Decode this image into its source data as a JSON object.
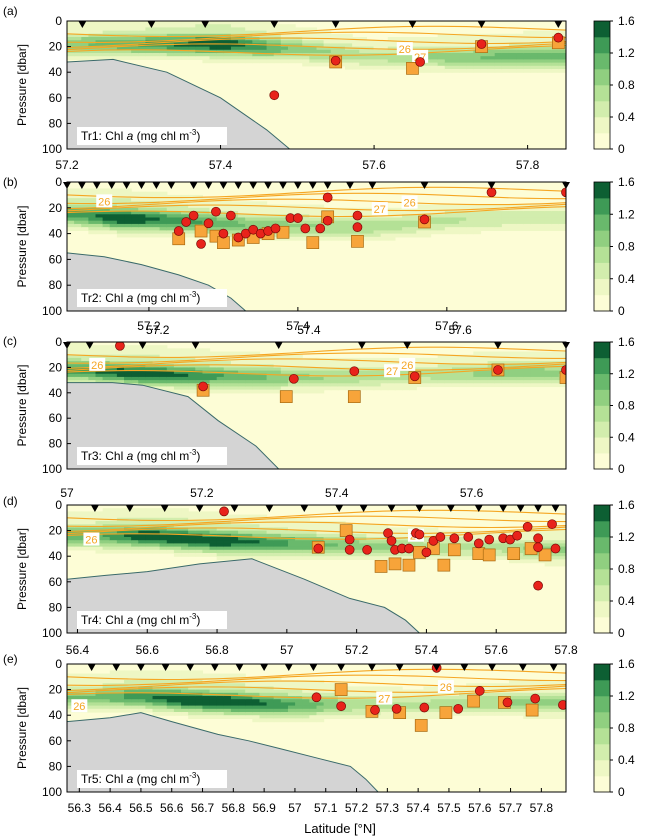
{
  "figure": {
    "xlabel": "Latitude [°N]",
    "cbar_ticks": [
      "1.6",
      "1.2",
      "0.8",
      "0.4",
      "0"
    ],
    "colors": {
      "c0": "#fdfdd6",
      "c1": "#eef7c4",
      "c2": "#d2edad",
      "c3": "#b4e196",
      "c4": "#90cf80",
      "c5": "#69b96c",
      "c6": "#3e9a56",
      "c7": "#0d5f33",
      "bathy": "#d4d4d4",
      "bathy_edge": "#3a6a6a",
      "isopycnal": "#f5a623",
      "circle": "#e8231b",
      "square": "#f7a43a"
    }
  },
  "chart_data": [
    {
      "type": "heatmap",
      "panel": "(a)",
      "transect": "Tr1",
      "label_prefix": "Tr1: Chl ",
      "label_var": "a",
      "label_unit": " (mg chl m",
      "label_sup": "-3",
      "label_end": ")",
      "ylabel": "Pressure [dbar]",
      "ylim": [
        100,
        0
      ],
      "yticks": [
        "0",
        "20",
        "40",
        "60",
        "80",
        "100"
      ],
      "xlim": [
        57.2,
        57.85
      ],
      "xticks": [
        57.2,
        57.4,
        57.6,
        57.8
      ],
      "xtick_labels": [
        "57.2",
        "57.4",
        "57.6",
        "57.8"
      ],
      "colorbar": [
        0,
        1.6
      ],
      "stations": [
        57.22,
        57.31,
        57.38,
        57.47,
        57.55,
        57.65,
        57.74,
        57.84
      ],
      "isopycnal_labels": [
        {
          "text": "26",
          "x": 57.64,
          "y": 22
        },
        {
          "text": "27",
          "x": 57.66,
          "y": 28
        }
      ],
      "circles": [
        [
          57.47,
          58
        ],
        [
          57.55,
          31
        ],
        [
          57.66,
          32
        ],
        [
          57.74,
          18
        ],
        [
          57.84,
          13
        ]
      ],
      "squares": [
        [
          57.55,
          32
        ],
        [
          57.65,
          37
        ],
        [
          57.74,
          20
        ],
        [
          57.84,
          17
        ]
      ],
      "bathymetry": [
        [
          57.2,
          32
        ],
        [
          57.26,
          30
        ],
        [
          57.33,
          40
        ],
        [
          57.4,
          60
        ],
        [
          57.46,
          85
        ],
        [
          57.49,
          100
        ]
      ],
      "chl_max": [
        [
          57.2,
          18,
          0.9
        ],
        [
          57.3,
          18,
          1.2
        ],
        [
          57.4,
          18,
          1.6
        ],
        [
          57.5,
          22,
          0.9
        ],
        [
          57.6,
          28,
          0.6
        ],
        [
          57.7,
          28,
          0.9
        ],
        [
          57.8,
          28,
          1.1
        ]
      ]
    },
    {
      "type": "heatmap",
      "panel": "(b)",
      "transect": "Tr2",
      "label_prefix": "Tr2: Chl ",
      "label_var": "a",
      "label_unit": " (mg chl m",
      "label_sup": "-3",
      "label_end": ")",
      "ylabel": "Pressure [dbar]",
      "ylim": [
        100,
        0
      ],
      "yticks": [
        "0",
        "20",
        "40",
        "60",
        "80",
        "100"
      ],
      "xlim": [
        57.09,
        57.76
      ],
      "xticks": [
        57.2,
        57.4,
        57.6
      ],
      "xtick_labels": [
        "57.2",
        "57.4",
        "57.6"
      ],
      "colorbar": [
        0,
        1.6
      ],
      "stations": [
        57.09,
        57.11,
        57.13,
        57.15,
        57.17,
        57.19,
        57.21,
        57.23,
        57.26,
        57.28,
        57.3,
        57.32,
        57.34,
        57.36,
        57.38,
        57.4,
        57.42,
        57.44,
        57.47,
        57.5,
        57.57,
        57.66,
        57.76
      ],
      "isopycnal_labels": [
        {
          "text": "26",
          "x": 57.14,
          "y": 15
        },
        {
          "text": "26",
          "x": 57.55,
          "y": 16
        },
        {
          "text": "27",
          "x": 57.51,
          "y": 21
        }
      ],
      "circles": [
        [
          57.44,
          12
        ],
        [
          57.66,
          8
        ],
        [
          57.76,
          8
        ],
        [
          57.24,
          38
        ],
        [
          57.25,
          31
        ],
        [
          57.26,
          26
        ],
        [
          57.27,
          48
        ],
        [
          57.28,
          32
        ],
        [
          57.29,
          23
        ],
        [
          57.3,
          40
        ],
        [
          57.31,
          26
        ],
        [
          57.32,
          43
        ],
        [
          57.33,
          40
        ],
        [
          57.34,
          37
        ],
        [
          57.35,
          40
        ],
        [
          57.36,
          38
        ],
        [
          57.37,
          36
        ],
        [
          57.39,
          28
        ],
        [
          57.4,
          28
        ],
        [
          57.41,
          36
        ],
        [
          57.43,
          36
        ],
        [
          57.44,
          30
        ],
        [
          57.48,
          26
        ],
        [
          57.48,
          35
        ],
        [
          57.57,
          29
        ]
      ],
      "squares": [
        [
          57.24,
          44
        ],
        [
          57.27,
          38
        ],
        [
          57.29,
          42
        ],
        [
          57.3,
          47
        ],
        [
          57.32,
          45
        ],
        [
          57.34,
          43
        ],
        [
          57.36,
          40
        ],
        [
          57.38,
          39
        ],
        [
          57.42,
          47
        ],
        [
          57.44,
          27
        ],
        [
          57.48,
          46
        ],
        [
          57.57,
          31
        ]
      ],
      "bathymetry": [
        [
          57.09,
          55
        ],
        [
          57.14,
          58
        ],
        [
          57.19,
          64
        ],
        [
          57.24,
          72
        ],
        [
          57.28,
          80
        ],
        [
          57.31,
          90
        ],
        [
          57.33,
          100
        ]
      ],
      "chl_max": [
        [
          57.1,
          25,
          1.2
        ],
        [
          57.16,
          28,
          1.6
        ],
        [
          57.24,
          30,
          1.3
        ],
        [
          57.32,
          33,
          1.0
        ],
        [
          57.4,
          34,
          0.8
        ],
        [
          57.5,
          35,
          0.7
        ],
        [
          57.6,
          30,
          0.6
        ],
        [
          57.7,
          28,
          0.5
        ]
      ]
    },
    {
      "type": "heatmap",
      "panel": "(c)",
      "transect": "Tr3",
      "label_prefix": "Tr3: Chl ",
      "label_var": "a",
      "label_unit": " (mg chl m",
      "label_sup": "-3",
      "label_end": ")",
      "ylabel": "Pressure [dbar]",
      "ylim": [
        100,
        0
      ],
      "yticks": [
        "0",
        "20",
        "40",
        "60",
        "80",
        "100"
      ],
      "xlim": [
        57.08,
        57.74
      ],
      "xticks": [
        57.2,
        57.4,
        57.6
      ],
      "xtick_labels": [
        "57.2",
        "57.4",
        "57.6"
      ],
      "colorbar": [
        0,
        1.6
      ],
      "stations": [
        57.08,
        57.11,
        57.18,
        57.25,
        57.36,
        57.47,
        57.53,
        57.65,
        57.74
      ],
      "isopycnal_labels": [
        {
          "text": "26",
          "x": 57.12,
          "y": 18
        },
        {
          "text": "26",
          "x": 57.53,
          "y": 18
        },
        {
          "text": "27",
          "x": 57.51,
          "y": 23
        }
      ],
      "circles": [
        [
          57.15,
          3
        ],
        [
          57.26,
          35
        ],
        [
          57.38,
          29
        ],
        [
          57.46,
          23
        ],
        [
          57.54,
          27
        ],
        [
          57.65,
          22
        ],
        [
          57.74,
          22
        ]
      ],
      "squares": [
        [
          57.26,
          38
        ],
        [
          57.37,
          43
        ],
        [
          57.46,
          43
        ],
        [
          57.54,
          28
        ],
        [
          57.65,
          22
        ],
        [
          57.74,
          28
        ]
      ],
      "bathymetry": [
        [
          57.08,
          32
        ],
        [
          57.14,
          32
        ],
        [
          57.18,
          34
        ],
        [
          57.24,
          43
        ],
        [
          57.28,
          62
        ],
        [
          57.33,
          82
        ],
        [
          57.36,
          100
        ]
      ],
      "chl_max": [
        [
          57.1,
          22,
          1.3
        ],
        [
          57.18,
          25,
          1.6
        ],
        [
          57.28,
          27,
          1.2
        ],
        [
          57.4,
          28,
          0.8
        ],
        [
          57.55,
          26,
          0.6
        ],
        [
          57.66,
          24,
          0.9
        ],
        [
          57.74,
          24,
          0.8
        ]
      ]
    },
    {
      "type": "heatmap",
      "panel": "(d)",
      "transect": "Tr4",
      "label_prefix": "Tr4: Chl ",
      "label_var": "a",
      "label_unit": " (mg chl m",
      "label_sup": "-3",
      "label_end": ")",
      "ylabel": "Pressure [dbar]",
      "ylim": [
        100,
        0
      ],
      "yticks": [
        "0",
        "20",
        "40",
        "60",
        "80",
        "100"
      ],
      "top_xlim": [
        57,
        57.74
      ],
      "top_xticks": [
        57,
        57.2,
        57.4,
        57.6
      ],
      "top_xtick_labels": [
        "57",
        "57.2",
        "57.4",
        "57.6"
      ],
      "xlim": [
        56.37,
        57.8
      ],
      "xticks": [
        56.4,
        56.6,
        56.8,
        57,
        57.2,
        57.4,
        57.6,
        57.8
      ],
      "xtick_labels": [
        "56.4",
        "56.6",
        "56.8",
        "57",
        "57.2",
        "57.4",
        "57.6",
        "57.8"
      ],
      "colorbar": [
        0,
        1.6
      ],
      "stations": [
        56.45,
        56.55,
        56.65,
        56.75,
        56.85,
        56.95,
        57.05,
        57.15,
        57.22,
        57.3,
        57.38,
        57.47,
        57.55,
        57.62,
        57.67,
        57.72,
        57.77
      ],
      "isopycnal_labels": [
        {
          "text": "26",
          "x": 56.44,
          "y": 27
        },
        {
          "text": "26",
          "x": 57.37,
          "y": 24
        }
      ],
      "circles": [
        [
          56.82,
          5
        ],
        [
          57.09,
          34
        ],
        [
          57.18,
          27
        ],
        [
          57.18,
          35
        ],
        [
          57.23,
          35
        ],
        [
          57.29,
          22
        ],
        [
          57.3,
          28
        ],
        [
          57.31,
          35
        ],
        [
          57.33,
          34
        ],
        [
          57.35,
          34
        ],
        [
          57.37,
          22
        ],
        [
          57.38,
          23
        ],
        [
          57.4,
          37
        ],
        [
          57.42,
          28
        ],
        [
          57.44,
          25
        ],
        [
          57.48,
          26
        ],
        [
          57.52,
          25
        ],
        [
          57.55,
          30
        ],
        [
          57.58,
          27
        ],
        [
          57.62,
          26
        ],
        [
          57.64,
          27
        ],
        [
          57.66,
          24
        ],
        [
          57.69,
          17
        ],
        [
          57.72,
          26
        ],
        [
          57.72,
          33
        ],
        [
          57.76,
          15
        ],
        [
          57.77,
          34
        ],
        [
          57.72,
          63
        ]
      ],
      "squares": [
        [
          57.09,
          33
        ],
        [
          57.17,
          20
        ],
        [
          57.27,
          48
        ],
        [
          57.31,
          46
        ],
        [
          57.35,
          47
        ],
        [
          57.38,
          37
        ],
        [
          57.42,
          34
        ],
        [
          57.45,
          47
        ],
        [
          57.48,
          35
        ],
        [
          57.55,
          38
        ],
        [
          57.58,
          39
        ],
        [
          57.65,
          38
        ],
        [
          57.7,
          34
        ],
        [
          57.74,
          39
        ]
      ],
      "bathymetry": [
        [
          56.37,
          58
        ],
        [
          56.48,
          55
        ],
        [
          56.6,
          52
        ],
        [
          56.75,
          46
        ],
        [
          56.9,
          42
        ],
        [
          57.05,
          58
        ],
        [
          57.18,
          73
        ],
        [
          57.28,
          80
        ],
        [
          57.34,
          90
        ],
        [
          57.38,
          100
        ]
      ],
      "chl_max": [
        [
          56.45,
          24,
          1.1
        ],
        [
          56.6,
          24,
          1.6
        ],
        [
          56.8,
          28,
          1.6
        ],
        [
          57.0,
          30,
          1.2
        ],
        [
          57.2,
          32,
          0.9
        ],
        [
          57.4,
          33,
          0.7
        ],
        [
          57.6,
          33,
          0.6
        ],
        [
          57.75,
          35,
          0.9
        ]
      ]
    },
    {
      "type": "heatmap",
      "panel": "(e)",
      "transect": "Tr5",
      "label_prefix": "Tr5: Chl ",
      "label_var": "a",
      "label_unit": " (mg chl m",
      "label_sup": "-3",
      "label_end": ")",
      "ylabel": "Pressure [dbar]",
      "ylim": [
        100,
        0
      ],
      "yticks": [
        "0",
        "20",
        "40",
        "60",
        "80",
        "100"
      ],
      "xlim": [
        56.26,
        57.88
      ],
      "xticks": [
        56.3,
        56.4,
        56.5,
        56.6,
        56.7,
        56.8,
        56.9,
        57,
        57.1,
        57.2,
        57.3,
        57.4,
        57.5,
        57.6,
        57.7,
        57.8
      ],
      "xtick_labels": [
        "56.3",
        "56.4",
        "56.5",
        "56.6",
        "56.7",
        "56.8",
        "56.9",
        "57",
        "57.1",
        "57.2",
        "57.3",
        "57.4",
        "57.5",
        "57.6",
        "57.7",
        "57.8"
      ],
      "colorbar": [
        0,
        1.6
      ],
      "stations": [
        56.34,
        56.42,
        56.5,
        56.58,
        56.66,
        56.74,
        56.82,
        56.9,
        56.98,
        57.06,
        57.15,
        57.25,
        57.34,
        57.46,
        57.55,
        57.64,
        57.74,
        57.84
      ],
      "isopycnal_labels": [
        {
          "text": "26",
          "x": 56.3,
          "y": 33
        },
        {
          "text": "26",
          "x": 57.49,
          "y": 18
        },
        {
          "text": "27",
          "x": 57.29,
          "y": 27
        }
      ],
      "circles": [
        [
          57.07,
          26
        ],
        [
          57.15,
          33
        ],
        [
          57.26,
          36
        ],
        [
          57.33,
          35
        ],
        [
          57.42,
          34
        ],
        [
          57.46,
          3
        ],
        [
          57.53,
          35
        ],
        [
          57.6,
          21
        ],
        [
          57.69,
          30
        ],
        [
          57.78,
          27
        ],
        [
          57.87,
          32
        ]
      ],
      "squares": [
        [
          57.15,
          20
        ],
        [
          57.25,
          37
        ],
        [
          57.34,
          38
        ],
        [
          57.41,
          48
        ],
        [
          57.49,
          38
        ],
        [
          57.58,
          29
        ],
        [
          57.68,
          30
        ],
        [
          57.77,
          36
        ]
      ],
      "bathymetry": [
        [
          56.26,
          45
        ],
        [
          56.4,
          42
        ],
        [
          56.5,
          38
        ],
        [
          56.6,
          45
        ],
        [
          56.75,
          55
        ],
        [
          56.85,
          60
        ],
        [
          56.95,
          66
        ],
        [
          57.08,
          74
        ],
        [
          57.18,
          80
        ],
        [
          57.23,
          90
        ],
        [
          57.27,
          100
        ]
      ],
      "chl_max": [
        [
          56.35,
          26,
          1.0
        ],
        [
          56.5,
          25,
          1.3
        ],
        [
          56.65,
          28,
          1.6
        ],
        [
          56.8,
          30,
          1.6
        ],
        [
          57.0,
          32,
          1.2
        ],
        [
          57.2,
          32,
          0.7
        ],
        [
          57.4,
          32,
          0.6
        ],
        [
          57.6,
          30,
          0.7
        ],
        [
          57.8,
          30,
          0.9
        ]
      ]
    }
  ]
}
